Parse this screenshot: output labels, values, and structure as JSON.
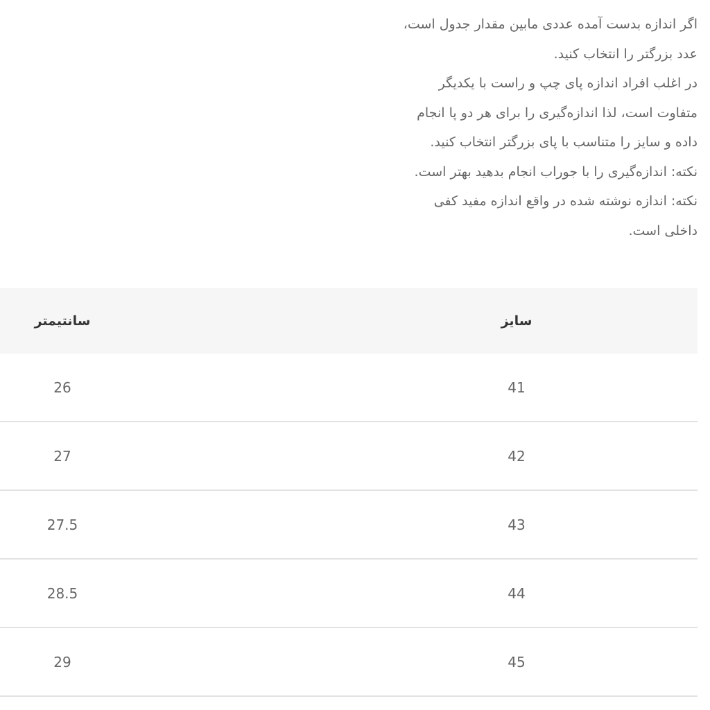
{
  "notes": [
    "اگر اندازه بدست آمده عددی مابین مقدار جدول است،",
    "عدد بزرگتر را انتخاب کنید.",
    "در اغلب افراد اندازه پای چپ و راست با یکدیگر",
    "متفاوت است، لذا اندازه‌گیری را برای هر دو پا انجام",
    "داده و سایز را متناسب با پای بزرگتر انتخاب کنید.",
    "نکته: اندازه‌گیری را با جوراب انجام بدهید بهتر است.",
    "نکته: اندازه نوشته شده در واقع اندازه مفید کفی",
    "داخلی است."
  ],
  "table": {
    "headers": {
      "size": "سایز",
      "cm": "سانتیمتر"
    },
    "rows": [
      {
        "size": "41",
        "cm": "26"
      },
      {
        "size": "42",
        "cm": "27"
      },
      {
        "size": "43",
        "cm": "27.5"
      },
      {
        "size": "44",
        "cm": "28.5"
      },
      {
        "size": "45",
        "cm": "29"
      }
    ]
  }
}
